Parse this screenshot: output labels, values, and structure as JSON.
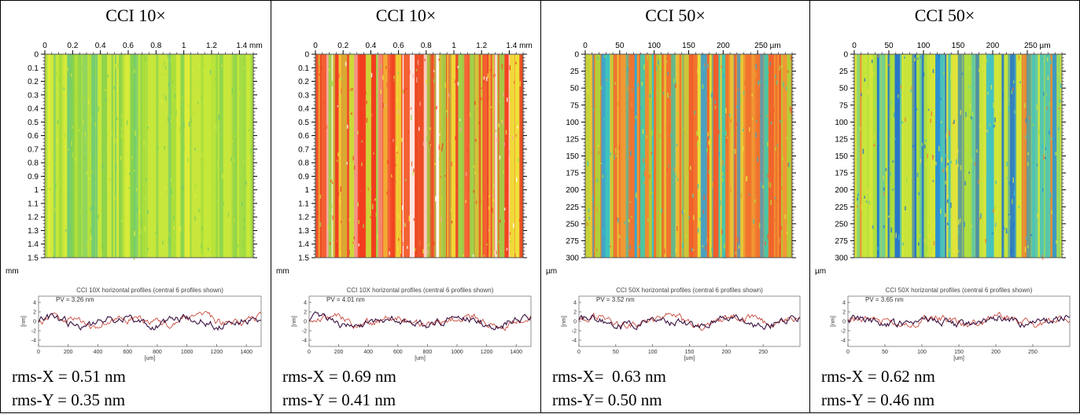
{
  "panels": [
    {
      "title": "CCI 10×",
      "x_ticks": [
        "0",
        "0.2",
        "0.4",
        "0.6",
        "0.8",
        "1",
        "1.2",
        "1.4 mm"
      ],
      "x_tick_pos": [
        0,
        0.2,
        0.4,
        0.6,
        0.8,
        1.0,
        1.2,
        1.4
      ],
      "x_range": [
        0,
        1.5
      ],
      "y_ticks": [
        "0",
        "0.1",
        "0.2",
        "0.3",
        "0.4",
        "0.5",
        "0.6",
        "0.7",
        "0.8",
        "0.9",
        "1",
        "1.1",
        "1.2",
        "1.3",
        "1.4",
        "1.5"
      ],
      "y_tick_pos": [
        0,
        0.1,
        0.2,
        0.3,
        0.4,
        0.5,
        0.6,
        0.7,
        0.8,
        0.9,
        1.0,
        1.1,
        1.2,
        1.3,
        1.4,
        1.5
      ],
      "y_range": [
        0,
        1.5
      ],
      "y_unit": "mm",
      "surface": "light",
      "profile_title": "CCI 10X horizontal profiles (central 6 profiles shown)",
      "pv": "PV = 3.26 nm",
      "profile_x_ticks": [
        "0",
        "200",
        "400",
        "600",
        "800",
        "1000",
        "1200",
        "1400"
      ],
      "profile_x_pos": [
        0,
        200,
        400,
        600,
        800,
        1000,
        1200,
        1400
      ],
      "profile_x_range": [
        0,
        1500
      ],
      "profile_y_ticks": [
        "4",
        "2",
        "0",
        "-2",
        "-4"
      ],
      "profile_x_unit": "[um]",
      "profile_y_unit": "[nm]",
      "rms_x": "rms-X = 0.51 nm",
      "rms_y": "rms-Y = 0.35 nm"
    },
    {
      "title": "CCI 10×",
      "x_ticks": [
        "0",
        "0.2",
        "0.4",
        "0.6",
        "0.8",
        "1",
        "1.2",
        "1.4 mm"
      ],
      "x_tick_pos": [
        0,
        0.2,
        0.4,
        0.6,
        0.8,
        1.0,
        1.2,
        1.4
      ],
      "x_range": [
        0,
        1.5
      ],
      "y_ticks": [
        "0",
        "0.1",
        "0.2",
        "0.3",
        "0.4",
        "0.5",
        "0.6",
        "0.7",
        "0.8",
        "0.9",
        "1",
        "1.1",
        "1.2",
        "1.3",
        "1.4",
        "1.5"
      ],
      "y_tick_pos": [
        0,
        0.1,
        0.2,
        0.3,
        0.4,
        0.5,
        0.6,
        0.7,
        0.8,
        0.9,
        1.0,
        1.1,
        1.2,
        1.3,
        1.4,
        1.5
      ],
      "y_range": [
        0,
        1.5
      ],
      "y_unit": "mm",
      "surface": "red",
      "profile_title": "CCI 10X horizontal profiles (central 6 profiles shown)",
      "pv": "PV = 4.01 nm",
      "profile_x_ticks": [
        "0",
        "200",
        "400",
        "600",
        "800",
        "1000",
        "1200",
        "1400"
      ],
      "profile_x_pos": [
        0,
        200,
        400,
        600,
        800,
        1000,
        1200,
        1400
      ],
      "profile_x_range": [
        0,
        1500
      ],
      "profile_y_ticks": [
        "4",
        "2",
        "0",
        "-2",
        "-4"
      ],
      "profile_x_unit": "[um]",
      "profile_y_unit": "[nm]",
      "rms_x": "rms-X = 0.69 nm",
      "rms_y": "rms-Y = 0.41 nm"
    },
    {
      "title": "CCI 50×",
      "x_ticks": [
        "0",
        "50",
        "100",
        "150",
        "200",
        "250 µm"
      ],
      "x_tick_pos": [
        0,
        50,
        100,
        150,
        200,
        250
      ],
      "x_range": [
        0,
        300
      ],
      "y_ticks": [
        "0",
        "25",
        "50",
        "75",
        "100",
        "125",
        "150",
        "175",
        "200",
        "225",
        "250",
        "275",
        "300"
      ],
      "y_tick_pos": [
        0,
        25,
        50,
        75,
        100,
        125,
        150,
        175,
        200,
        225,
        250,
        275,
        300
      ],
      "y_range": [
        0,
        300
      ],
      "y_unit": "µm",
      "surface": "mixed",
      "profile_title": "CCI 50X horizontal profiles (central 6 profiles shown)",
      "pv": "PV = 3.52 nm",
      "profile_x_ticks": [
        "0",
        "50",
        "100",
        "150",
        "200",
        "250"
      ],
      "profile_x_pos": [
        0,
        50,
        100,
        150,
        200,
        250
      ],
      "profile_x_range": [
        0,
        300
      ],
      "profile_y_ticks": [
        "4",
        "2",
        "0",
        "-2",
        "-4"
      ],
      "profile_x_unit": "[um]",
      "profile_y_unit": "[nm]",
      "rms_x": "rms-X=  0.63 nm",
      "rms_y": "rms-Y= 0.50 nm"
    },
    {
      "title": "CCI 50×",
      "x_ticks": [
        "0",
        "50",
        "100",
        "150",
        "200",
        "250 µm"
      ],
      "x_tick_pos": [
        0,
        50,
        100,
        150,
        200,
        250
      ],
      "x_range": [
        0,
        300
      ],
      "y_ticks": [
        "0",
        "25",
        "50",
        "75",
        "100",
        "125",
        "150",
        "175",
        "200",
        "225",
        "250",
        "275",
        "300"
      ],
      "y_tick_pos": [
        0,
        25,
        50,
        75,
        100,
        125,
        150,
        175,
        200,
        225,
        250,
        275,
        300
      ],
      "y_range": [
        0,
        300
      ],
      "y_unit": "µm",
      "surface": "blue",
      "profile_title": "CCI 50X horizontal profiles (central 6 profiles shown)",
      "pv": "PV = 3.65 nm",
      "profile_x_ticks": [
        "0",
        "50",
        "100",
        "150",
        "200",
        "250"
      ],
      "profile_x_pos": [
        0,
        50,
        100,
        150,
        200,
        250
      ],
      "profile_x_range": [
        0,
        300
      ],
      "profile_y_ticks": [
        "4",
        "2",
        "0",
        "-2",
        "-4"
      ],
      "profile_x_unit": "[um]",
      "profile_y_unit": "[nm]",
      "rms_x": "rms-X = 0.62 nm",
      "rms_y": "rms-Y = 0.46 nm"
    }
  ]
}
